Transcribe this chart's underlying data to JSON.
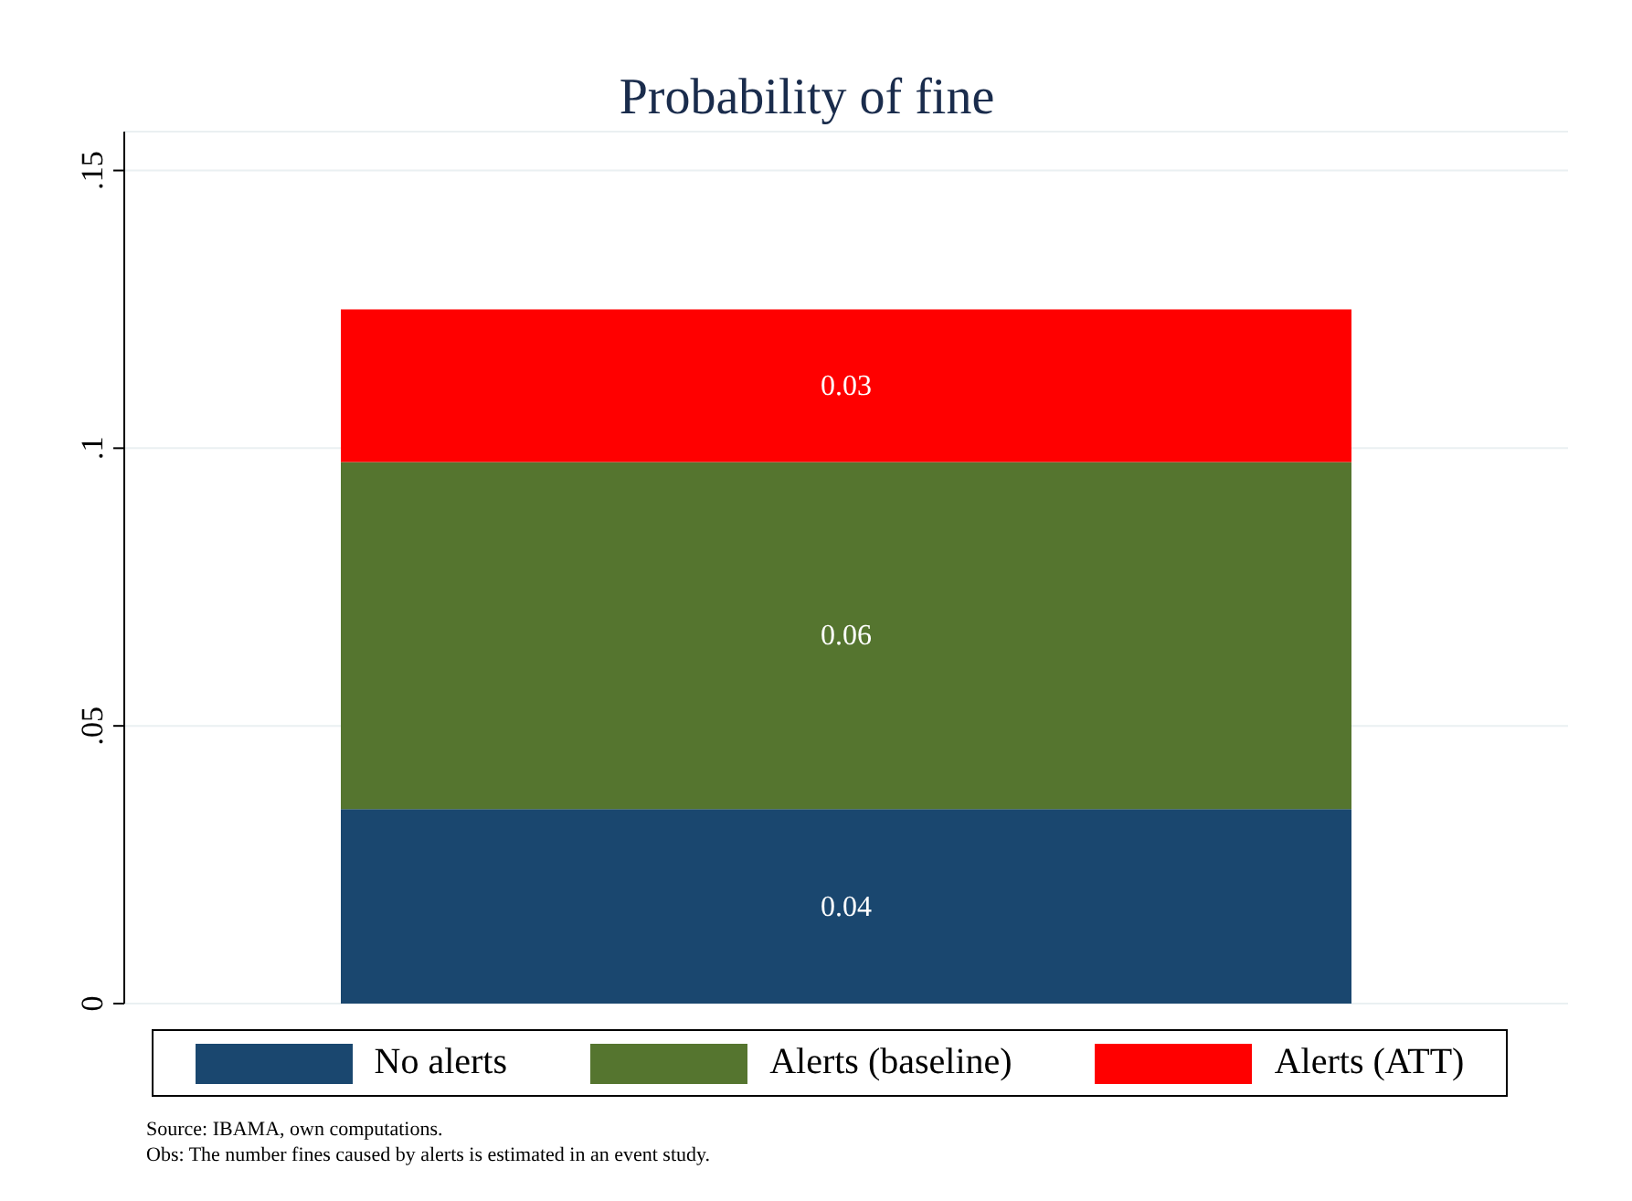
{
  "chart_data": {
    "type": "bar",
    "title": "Probability of fine",
    "categories": [
      null
    ],
    "stacked": true,
    "series": [
      {
        "name": "No alerts",
        "color": "#1a476f",
        "values": [
          0.035
        ],
        "value_labels": [
          "0.04"
        ]
      },
      {
        "name": "Alerts (baseline)",
        "color": "#55752f",
        "values": [
          0.0625
        ],
        "value_labels": [
          "0.06"
        ]
      },
      {
        "name": "Alerts (ATT)",
        "color": "#ff0000",
        "values": [
          0.0275
        ],
        "value_labels": [
          "0.03"
        ]
      }
    ],
    "ylim": [
      0,
      0.157
    ],
    "yticks": [
      {
        "value": 0,
        "label": "0"
      },
      {
        "value": 0.05,
        "label": ".05"
      },
      {
        "value": 0.1,
        "label": ".1"
      },
      {
        "value": 0.15,
        "label": ".15"
      }
    ],
    "grid": "y",
    "legend": "bottom",
    "annotations": [
      "Source: IBAMA, own computations.",
      "Obs: The number fines caused by alerts is estimated in an event study."
    ]
  }
}
